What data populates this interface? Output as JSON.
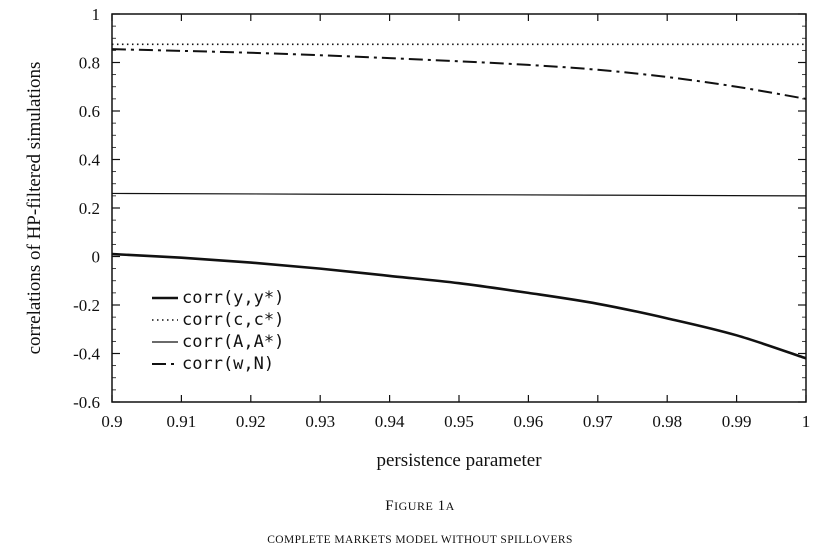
{
  "figure": {
    "title": "Figure 1a",
    "subtitle": "COMPLETE MARKETS MODEL WITHOUT SPILLOVERS"
  },
  "chart_data": {
    "type": "line",
    "xlabel": "persistence parameter",
    "ylabel": "correlations of HP-filtered simulations",
    "xlim": [
      0.9,
      1.0
    ],
    "ylim": [
      -0.6,
      1.0
    ],
    "xticks": [
      "0.9",
      "0.91",
      "0.92",
      "0.93",
      "0.94",
      "0.95",
      "0.96",
      "0.97",
      "0.98",
      "0.99",
      "1"
    ],
    "yticks": [
      "-0.6",
      "-0.4",
      "-0.2",
      "0",
      "0.2",
      "0.4",
      "0.6",
      "0.8",
      "1"
    ],
    "grid": false,
    "legend_position": "lower-left",
    "series": [
      {
        "name": "corr(y,y*)",
        "style": "thick-solid",
        "x": [
          0.9,
          0.91,
          0.92,
          0.93,
          0.94,
          0.95,
          0.96,
          0.97,
          0.98,
          0.99,
          1.0
        ],
        "y": [
          0.01,
          -0.005,
          -0.025,
          -0.05,
          -0.08,
          -0.11,
          -0.15,
          -0.195,
          -0.255,
          -0.325,
          -0.42
        ]
      },
      {
        "name": "corr(c,c*)",
        "style": "dotted",
        "x": [
          0.9,
          0.95,
          1.0
        ],
        "y": [
          0.875,
          0.875,
          0.875
        ]
      },
      {
        "name": "corr(A,A*)",
        "style": "thin-solid",
        "x": [
          0.9,
          0.95,
          1.0
        ],
        "y": [
          0.26,
          0.255,
          0.25
        ]
      },
      {
        "name": "corr(w,N)",
        "style": "dash-dot",
        "x": [
          0.9,
          0.91,
          0.92,
          0.93,
          0.94,
          0.95,
          0.96,
          0.97,
          0.98,
          0.99,
          1.0
        ],
        "y": [
          0.855,
          0.848,
          0.84,
          0.83,
          0.818,
          0.805,
          0.79,
          0.77,
          0.74,
          0.7,
          0.65
        ]
      }
    ]
  }
}
